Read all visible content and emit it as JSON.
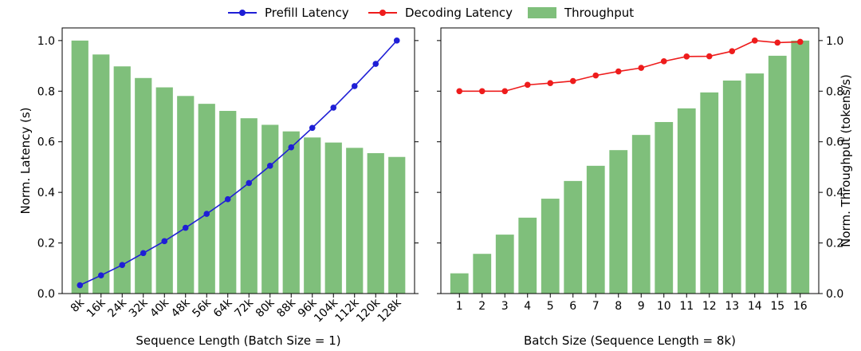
{
  "legend": {
    "prefill": "Prefill Latency",
    "decoding": "Decoding Latency",
    "throughput": "Throughput"
  },
  "colors": {
    "prefill": "#1f1fd6",
    "decoding": "#ee1c1c",
    "throughput": "#7fbf7b"
  },
  "chart_data": [
    {
      "type": "bar+line",
      "xlabel": "Sequence Length (Batch Size = 1)",
      "ylabel": "Norm. Latency (s)",
      "ylim": [
        0,
        1.05
      ],
      "yticks": [
        "0.0",
        "0.2",
        "0.4",
        "0.6",
        "0.8",
        "1.0"
      ],
      "categories": [
        "8k",
        "16k",
        "24k",
        "32k",
        "40k",
        "48k",
        "56k",
        "64k",
        "72k",
        "80k",
        "88k",
        "96k",
        "104k",
        "112k",
        "120k",
        "128k"
      ],
      "series": [
        {
          "name": "Throughput",
          "kind": "bar",
          "values": [
            1.0,
            0.945,
            0.898,
            0.852,
            0.815,
            0.781,
            0.75,
            0.722,
            0.693,
            0.667,
            0.641,
            0.617,
            0.597,
            0.576,
            0.555,
            0.54
          ]
        },
        {
          "name": "Prefill Latency",
          "kind": "line",
          "values": [
            0.033,
            0.072,
            0.113,
            0.16,
            0.207,
            0.26,
            0.315,
            0.373,
            0.437,
            0.505,
            0.578,
            0.655,
            0.735,
            0.82,
            0.908,
            1.0
          ]
        }
      ]
    },
    {
      "type": "bar+line",
      "xlabel": "Batch Size (Sequence Length = 8k)",
      "ylabel": "Norm. Throughput (tokens/s)",
      "ylim": [
        0,
        1.05
      ],
      "yticks": [
        "0.0",
        "0.2",
        "0.4",
        "0.6",
        "0.8",
        "1.0"
      ],
      "categories": [
        "1",
        "2",
        "3",
        "4",
        "5",
        "6",
        "7",
        "8",
        "9",
        "10",
        "11",
        "12",
        "13",
        "14",
        "15",
        "16"
      ],
      "series": [
        {
          "name": "Throughput",
          "kind": "bar",
          "values": [
            0.08,
            0.157,
            0.233,
            0.3,
            0.375,
            0.445,
            0.505,
            0.567,
            0.627,
            0.678,
            0.732,
            0.795,
            0.842,
            0.87,
            0.94,
            1.0
          ]
        },
        {
          "name": "Decoding Latency",
          "kind": "line",
          "values": [
            0.8,
            0.8,
            0.8,
            0.825,
            0.832,
            0.84,
            0.862,
            0.878,
            0.892,
            0.918,
            0.937,
            0.938,
            0.958,
            1.0,
            0.992,
            0.995
          ]
        }
      ]
    }
  ]
}
